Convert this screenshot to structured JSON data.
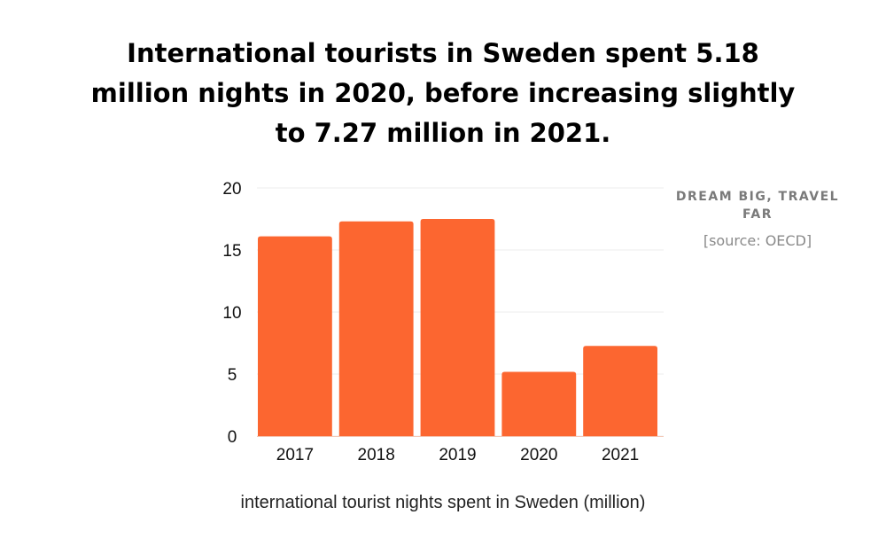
{
  "title": "International tourists in Sweden spent 5.18 million nights in 2020, before increasing slightly to 7.27 million in 2021.",
  "brand": "DREAM BIG, TRAVEL FAR",
  "source": "[source: OECD]",
  "chart_data": {
    "type": "bar",
    "title": "International tourists in Sweden spent 5.18 million nights in 2020, before increasing slightly to 7.27 million in 2021.",
    "categories": [
      "2017",
      "2018",
      "2019",
      "2020",
      "2021"
    ],
    "values": [
      16.1,
      17.3,
      17.5,
      5.18,
      7.27
    ],
    "xlabel": "international tourist nights spent in Sweden (million)",
    "ylabel": "",
    "ylim": [
      0,
      20
    ],
    "yticks": [
      "0",
      "5",
      "10",
      "15",
      "20"
    ],
    "grid": true,
    "bar_color": "#fc6630"
  }
}
